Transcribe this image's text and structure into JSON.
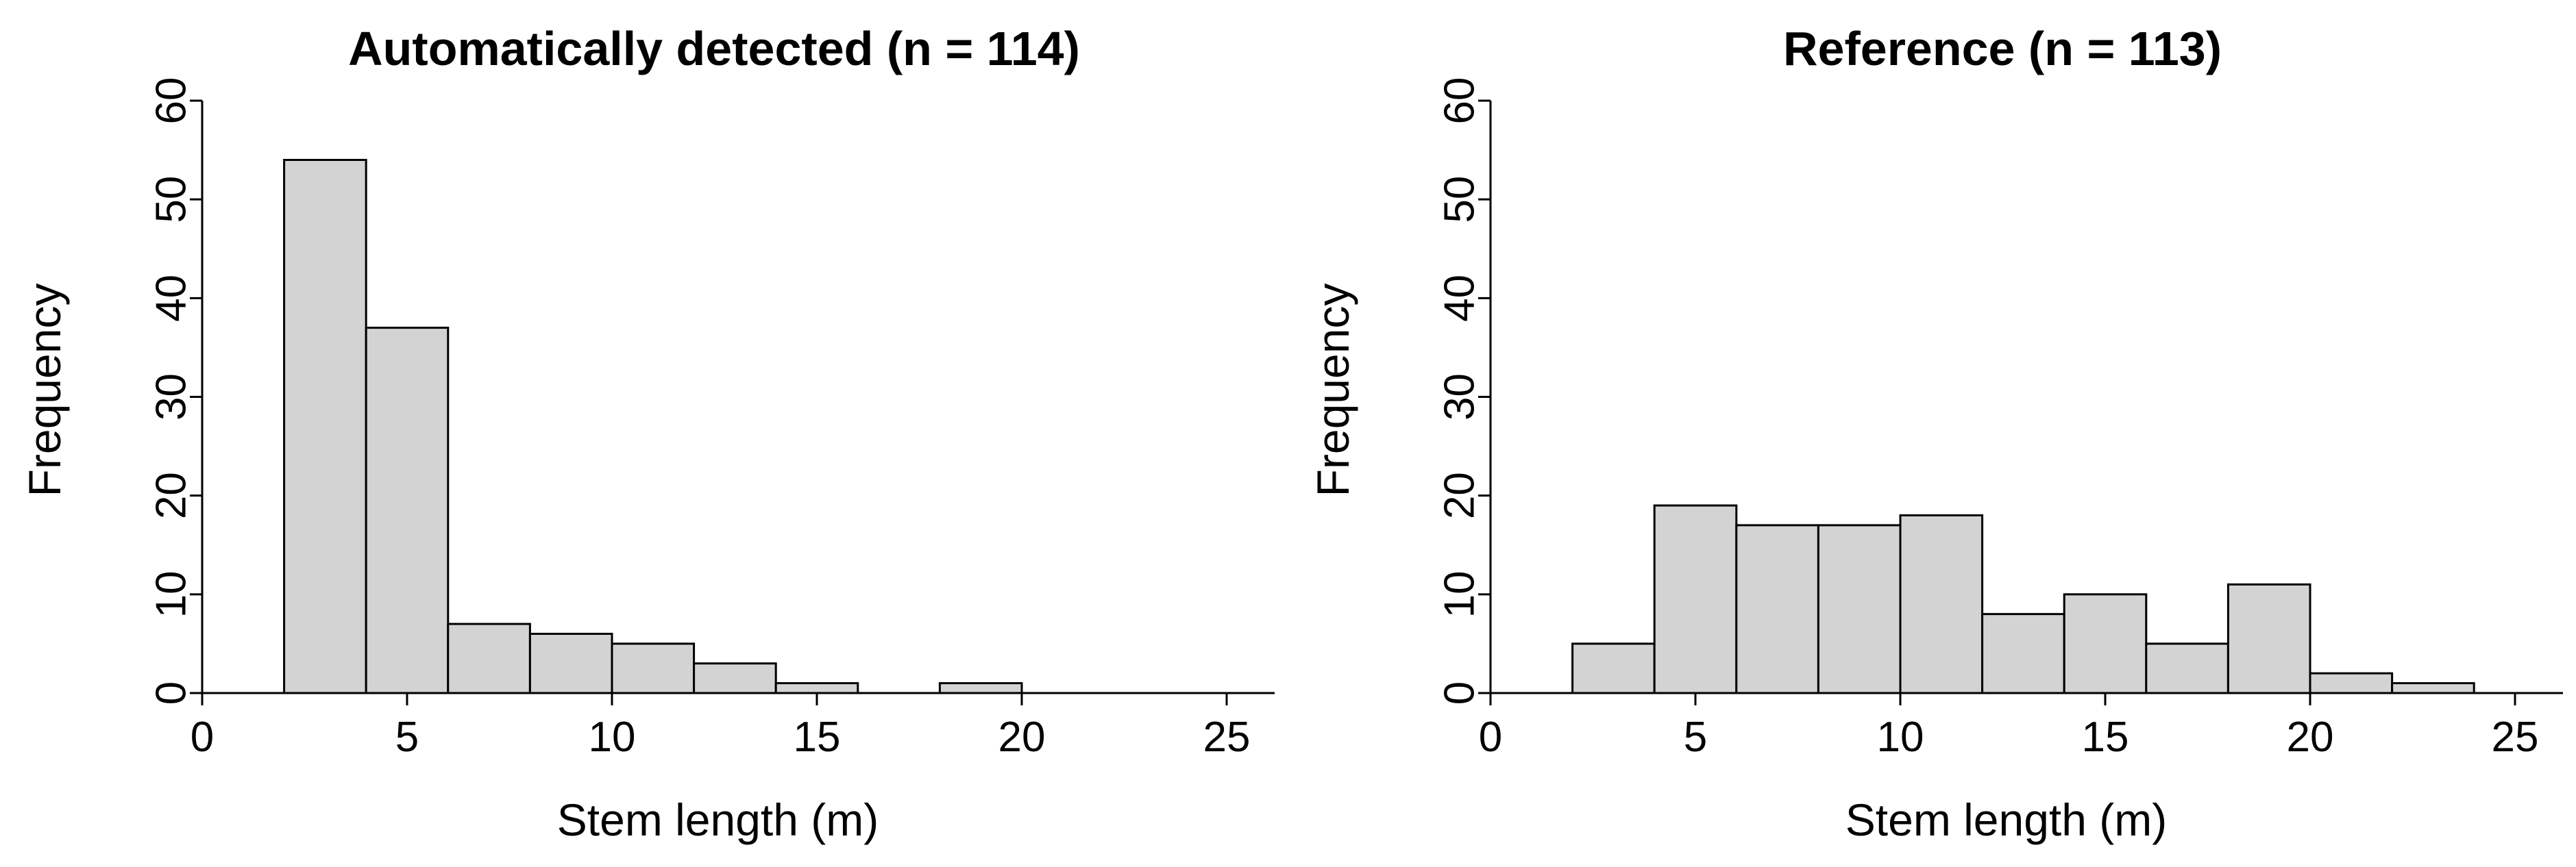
{
  "chart_data": [
    {
      "type": "bar",
      "subtype": "histogram",
      "title": "Automatically detected (n = 114)",
      "xlabel": "Stem length (m)",
      "ylabel": "Frequency",
      "xlim": [
        0,
        25
      ],
      "ylim": [
        0,
        60
      ],
      "xticks": [
        "0",
        "5",
        "10",
        "15",
        "20",
        "25"
      ],
      "yticks": [
        "0",
        "10",
        "20",
        "30",
        "40",
        "50",
        "60"
      ],
      "bin_width": 2,
      "bins": [
        {
          "start": 2,
          "end": 4,
          "count": 54
        },
        {
          "start": 4,
          "end": 6,
          "count": 37
        },
        {
          "start": 6,
          "end": 8,
          "count": 7
        },
        {
          "start": 8,
          "end": 10,
          "count": 6
        },
        {
          "start": 10,
          "end": 12,
          "count": 5
        },
        {
          "start": 12,
          "end": 14,
          "count": 3
        },
        {
          "start": 14,
          "end": 16,
          "count": 1
        },
        {
          "start": 16,
          "end": 18,
          "count": 0
        },
        {
          "start": 18,
          "end": 20,
          "count": 1
        }
      ],
      "bar_color": "#d3d3d3",
      "grid": false
    },
    {
      "type": "bar",
      "subtype": "histogram",
      "title": "Reference (n = 113)",
      "xlabel": "Stem length (m)",
      "ylabel": "Frequency",
      "xlim": [
        0,
        25
      ],
      "ylim": [
        0,
        60
      ],
      "xticks": [
        "0",
        "5",
        "10",
        "15",
        "20",
        "25"
      ],
      "yticks": [
        "0",
        "10",
        "20",
        "30",
        "40",
        "50",
        "60"
      ],
      "bin_width": 2,
      "bins": [
        {
          "start": 2,
          "end": 4,
          "count": 5
        },
        {
          "start": 4,
          "end": 6,
          "count": 19
        },
        {
          "start": 6,
          "end": 8,
          "count": 17
        },
        {
          "start": 8,
          "end": 10,
          "count": 17
        },
        {
          "start": 10,
          "end": 12,
          "count": 18
        },
        {
          "start": 12,
          "end": 14,
          "count": 8
        },
        {
          "start": 14,
          "end": 16,
          "count": 10
        },
        {
          "start": 16,
          "end": 18,
          "count": 5
        },
        {
          "start": 18,
          "end": 20,
          "count": 11
        },
        {
          "start": 20,
          "end": 22,
          "count": 2
        },
        {
          "start": 22,
          "end": 24,
          "count": 1
        }
      ],
      "bar_color": "#d3d3d3",
      "grid": false
    }
  ]
}
